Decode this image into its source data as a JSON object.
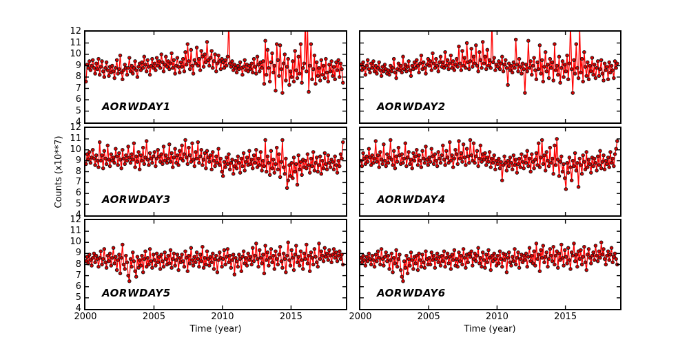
{
  "figure": {
    "background": "#ffffff",
    "axis_color": "#000000",
    "line_color": "#ff0000",
    "marker_fill": "#d40000",
    "marker_edge": "#151515"
  },
  "axes": {
    "x_label": "Time (year)",
    "y_label": "Counts (x10**7)",
    "x_ticks": [
      2000,
      2005,
      2010,
      2015
    ],
    "y_ticks": [
      4,
      5,
      6,
      7,
      8,
      9,
      10,
      11,
      12
    ],
    "x_range": [
      2000,
      2019.0
    ],
    "y_range": [
      4,
      12
    ],
    "grid": false,
    "tick_direction": "in"
  },
  "chart_data": [
    {
      "type": "line",
      "name": "AORWDAY1",
      "x_start": 2000.04,
      "x_step": 0.08333,
      "values": [
        7.6,
        9.1,
        8.8,
        9.4,
        8.6,
        9.0,
        9.5,
        8.8,
        8.3,
        9.2,
        8.7,
        9.6,
        8.2,
        8.9,
        9.4,
        8.5,
        8.0,
        8.8,
        9.3,
        8.6,
        8.1,
        8.9,
        8.4,
        9.0,
        8.5,
        7.9,
        8.8,
        9.5,
        8.3,
        8.7,
        9.9,
        8.4,
        7.8,
        8.6,
        9.1,
        8.8,
        8.2,
        8.8,
        9.7,
        8.5,
        9.0,
        8.3,
        8.8,
        9.4,
        8.6,
        8.0,
        8.9,
        9.2,
        8.6,
        9.3,
        8.8,
        9.8,
        9.1,
        8.5,
        9.5,
        8.9,
        8.2,
        9.0,
        9.6,
        8.8,
        9.2,
        8.6,
        9.7,
        9.0,
        9.4,
        8.8,
        10.0,
        9.3,
        8.5,
        9.1,
        9.8,
        8.9,
        9.4,
        8.7,
        9.2,
        10.1,
        8.8,
        9.5,
        8.3,
        9.0,
        9.7,
        8.9,
        8.4,
        9.3,
        8.9,
        9.6,
        8.5,
        10.2,
        9.1,
        10.9,
        9.4,
        8.7,
        10.4,
        9.0,
        8.3,
        9.5,
        9.2,
        10.6,
        9.0,
        9.6,
        8.6,
        10.3,
        9.8,
        8.9,
        10.0,
        9.3,
        11.1,
        9.5,
        9.0,
        9.7,
        10.3,
        8.8,
        9.4,
        10.0,
        8.5,
        9.2,
        9.9,
        9.4,
        8.7,
        9.6,
        9.3,
        8.8,
        9.5,
        9.0,
        9.8,
        12.8,
        9.2,
        8.9,
        9.4,
        8.6,
        9.1,
        8.8,
        8.4,
        9.0,
        8.7,
        9.3,
        8.8,
        8.2,
        8.9,
        9.5,
        8.6,
        9.1,
        8.5,
        9.0,
        8.7,
        9.2,
        8.4,
        9.6,
        8.9,
        8.3,
        9.8,
        9.1,
        8.5,
        9.3,
        8.8,
        9.4,
        7.4,
        11.2,
        8.2,
        10.4,
        8.8,
        7.6,
        9.3,
        10.1,
        8.4,
        9.0,
        6.8,
        10.9,
        9.5,
        8.1,
        10.8,
        8.7,
        6.6,
        9.2,
        10.0,
        7.7,
        8.9,
        9.6,
        7.3,
        8.5,
        8.0,
        9.4,
        7.6,
        10.3,
        8.6,
        7.9,
        9.8,
        8.3,
        10.9,
        7.5,
        8.8,
        9.2,
        12.9,
        8.5,
        12.4,
        6.7,
        9.0,
        10.9,
        7.8,
        8.7,
        9.9,
        7.4,
        9.3,
        8.1,
        8.8,
        7.7,
        9.5,
        8.2,
        9.0,
        7.9,
        9.6,
        8.4,
        7.6,
        9.1,
        8.5,
        9.4,
        8.1,
        8.9,
        7.8,
        9.3,
        8.6,
        9.5,
        8.0,
        9.2,
        8.7,
        7.5
      ]
    },
    {
      "type": "line",
      "name": "AORWDAY2",
      "x_start": 2000.04,
      "x_step": 0.08333,
      "values": [
        9.1,
        8.6,
        9.3,
        8.8,
        8.2,
        9.0,
        9.5,
        8.7,
        8.4,
        9.2,
        8.8,
        9.4,
        8.5,
        9.0,
        8.3,
        8.8,
        9.3,
        8.6,
        8.1,
        8.9,
        8.5,
        9.1,
        8.7,
        8.3,
        8.6,
        8.2,
        9.0,
        8.5,
        8.8,
        9.6,
        8.4,
        7.9,
        8.7,
        9.2,
        8.6,
        9.0,
        8.4,
        9.8,
        8.7,
        9.1,
        8.5,
        8.9,
        9.4,
        8.6,
        8.1,
        9.0,
        8.7,
        9.3,
        8.8,
        9.5,
        9.0,
        8.4,
        9.2,
        9.9,
        8.7,
        9.3,
        8.8,
        8.3,
        9.1,
        9.6,
        9.0,
        9.4,
        8.6,
        10.1,
        9.2,
        8.8,
        9.6,
        9.0,
        8.5,
        9.3,
        9.8,
        8.9,
        9.3,
        8.8,
        10.2,
        9.0,
        9.5,
        8.7,
        9.2,
        9.9,
        8.8,
        9.4,
        8.6,
        9.1,
        9.6,
        8.9,
        10.7,
        9.2,
        8.6,
        10.3,
        9.0,
        9.7,
        8.8,
        11.0,
        9.3,
        8.7,
        9.4,
        10.5,
        8.9,
        9.8,
        9.2,
        10.8,
        9.0,
        8.5,
        10.2,
        9.5,
        8.8,
        11.1,
        9.2,
        9.8,
        8.7,
        10.4,
        9.0,
        9.5,
        8.8,
        12.7,
        9.3,
        9.7,
        8.6,
        9.1,
        8.9,
        9.4,
        8.7,
        9.2,
        9.8,
        8.5,
        9.1,
        9.5,
        8.8,
        7.3,
        9.2,
        8.6,
        9.0,
        8.4,
        9.3,
        8.8,
        11.3,
        9.1,
        8.5,
        9.6,
        8.9,
        8.3,
        9.2,
        8.7,
        6.6,
        9.1,
        8.5,
        11.2,
        8.8,
        9.4,
        8.2,
        9.0,
        9.7,
        8.6,
        7.8,
        9.3,
        8.7,
        10.8,
        8.3,
        9.5,
        7.6,
        8.9,
        10.2,
        8.5,
        9.1,
        7.9,
        9.6,
        8.8,
        9.3,
        7.7,
        10.9,
        8.6,
        9.0,
        8.2,
        9.8,
        7.5,
        8.8,
        9.4,
        8.0,
        9.1,
        8.5,
        9.9,
        7.8,
        9.2,
        12.8,
        8.7,
        6.6,
        9.5,
        8.3,
        10.9,
        8.8,
        7.9,
        12.5,
        8.4,
        9.6,
        7.6,
        10.2,
        8.9,
        8.1,
        9.3,
        7.8,
        9.0,
        8.5,
        9.7,
        8.2,
        9.1,
        7.9,
        8.8,
        9.4,
        8.1,
        8.7,
        9.5,
        8.3,
        7.7,
        9.2,
        8.6,
        8.9,
        7.8,
        9.3,
        8.4,
        9.0,
        8.6,
        7.9,
        9.4,
        8.8,
        9.2
      ]
    },
    {
      "type": "line",
      "name": "AORWDAY3",
      "x_start": 2000.04,
      "x_step": 0.08333,
      "values": [
        8.7,
        9.6,
        9.1,
        9.8,
        8.8,
        9.3,
        10.0,
        9.2,
        8.6,
        9.5,
        9.0,
        8.4,
        10.7,
        9.0,
        9.5,
        8.3,
        9.9,
        9.2,
        8.7,
        10.4,
        9.1,
        8.5,
        9.6,
        9.0,
        9.3,
        8.8,
        10.1,
        9.4,
        8.6,
        9.7,
        9.1,
        8.3,
        10.0,
        9.2,
        8.7,
        9.5,
        9.0,
        10.3,
        9.3,
        8.8,
        9.6,
        9.1,
        10.6,
        8.4,
        9.4,
        8.9,
        9.8,
        8.2,
        9.5,
        9.0,
        10.2,
        8.7,
        9.3,
        10.8,
        9.1,
        8.6,
        9.7,
        9.2,
        8.8,
        9.4,
        9.8,
        8.5,
        9.2,
        10.0,
        9.4,
        8.9,
        9.6,
        8.7,
        10.3,
        9.0,
        9.5,
        8.8,
        9.2,
        10.5,
        8.9,
        9.7,
        8.4,
        9.3,
        10.1,
        8.8,
        9.5,
        8.6,
        9.9,
        9.2,
        10.4,
        9.0,
        9.6,
        10.9,
        9.3,
        8.7,
        10.2,
        9.5,
        8.9,
        10.6,
        9.1,
        8.5,
        9.8,
        9.2,
        10.7,
        8.8,
        9.4,
        10.0,
        8.6,
        9.1,
        9.7,
        8.3,
        9.9,
        9.3,
        8.9,
        9.5,
        8.2,
        9.8,
        9.0,
        8.5,
        9.4,
        8.8,
        10.1,
        8.6,
        9.2,
        8.0,
        7.6,
        8.9,
        8.4,
        9.3,
        8.7,
        9.6,
        8.2,
        8.8,
        9.1,
        7.8,
        8.5,
        9.0,
        8.3,
        9.4,
        8.8,
        7.9,
        9.2,
        8.5,
        9.7,
        8.1,
        8.9,
        9.3,
        8.6,
        9.9,
        8.7,
        9.1,
        8.3,
        9.5,
        8.8,
        10.0,
        8.4,
        9.2,
        8.6,
        9.8,
        8.1,
        9.0,
        8.5,
        10.9,
        8.0,
        9.4,
        8.8,
        7.7,
        9.9,
        8.3,
        9.1,
        7.9,
        8.7,
        10.2,
        8.2,
        9.6,
        7.5,
        8.9,
        10.9,
        8.4,
        7.8,
        9.2,
        6.5,
        7.2,
        8.6,
        7.6,
        8.8,
        7.4,
        9.3,
        8.0,
        8.7,
        6.8,
        9.5,
        8.2,
        8.9,
        7.7,
        9.1,
        8.4,
        9.0,
        8.3,
        9.6,
        8.6,
        7.9,
        9.2,
        8.5,
        9.8,
        8.1,
        8.8,
        9.3,
        8.0,
        8.6,
        9.4,
        7.8,
        9.0,
        8.3,
        9.7,
        8.7,
        8.2,
        9.5,
        8.8,
        8.4,
        9.1,
        8.9,
        8.2,
        9.4,
        8.6,
        7.9,
        9.0,
        8.5,
        9.6,
        9.2,
        10.7
      ]
    },
    {
      "type": "line",
      "name": "AORWDAY4",
      "x_start": 2000.04,
      "x_step": 0.08333,
      "values": [
        9.0,
        8.5,
        9.7,
        9.2,
        8.7,
        9.4,
        8.9,
        10.1,
        9.3,
        8.6,
        9.5,
        8.8,
        9.2,
        10.8,
        8.9,
        9.5,
        8.4,
        9.8,
        9.1,
        8.7,
        10.5,
        9.0,
        8.5,
        9.6,
        8.8,
        9.3,
        10.9,
        9.1,
        8.6,
        9.9,
        8.3,
        9.4,
        8.9,
        10.2,
        9.5,
        8.7,
        9.6,
        8.8,
        9.2,
        10.6,
        8.5,
        9.3,
        9.8,
        8.7,
        9.1,
        8.3,
        9.7,
        9.0,
        9.4,
        10.0,
        8.6,
        9.5,
        9.0,
        8.4,
        9.9,
        9.2,
        8.8,
        10.3,
        9.1,
        8.6,
        9.3,
        8.9,
        10.1,
        9.4,
        8.7,
        9.6,
        9.0,
        8.5,
        9.8,
        9.2,
        8.8,
        9.5,
        10.4,
        9.1,
        8.6,
        9.9,
        9.3,
        8.8,
        10.7,
        9.0,
        9.5,
        8.4,
        9.2,
        10.0,
        9.6,
        8.7,
        10.8,
        9.2,
        9.7,
        8.9,
        10.5,
        9.3,
        8.6,
        10.1,
        9.4,
        8.8,
        10.9,
        9.5,
        9.0,
        10.6,
        8.8,
        9.4,
        9.9,
        8.5,
        9.2,
        10.4,
        8.9,
        9.6,
        9.1,
        9.7,
        8.6,
        9.3,
        8.9,
        9.8,
        8.4,
        9.2,
        8.8,
        9.5,
        8.2,
        9.0,
        8.7,
        9.2,
        8.3,
        8.9,
        7.2,
        8.6,
        9.4,
        8.8,
        8.1,
        9.0,
        8.5,
        9.3,
        8.8,
        8.2,
        9.5,
        8.6,
        9.1,
        7.9,
        8.7,
        9.2,
        8.4,
        9.6,
        8.9,
        8.3,
        9.4,
        8.8,
        9.9,
        8.5,
        9.2,
        8.0,
        9.6,
        8.9,
        8.3,
        9.1,
        9.7,
        8.6,
        10.6,
        8.4,
        9.3,
        10.9,
        8.7,
        9.5,
        8.1,
        9.8,
        9.0,
        8.5,
        10.2,
        8.8,
        9.2,
        7.8,
        10.4,
        8.6,
        11.0,
        9.1,
        7.6,
        8.9,
        9.4,
        8.0,
        8.7,
        7.4,
        6.4,
        8.8,
        7.9,
        9.3,
        8.4,
        7.2,
        9.0,
        8.5,
        9.7,
        8.1,
        8.8,
        6.6,
        9.2,
        8.6,
        7.8,
        9.5,
        8.9,
        8.2,
        9.8,
        8.4,
        9.1,
        8.7,
        7.9,
        9.3,
        8.5,
        9.2,
        8.8,
        8.1,
        9.4,
        8.6,
        9.9,
        8.3,
        8.9,
        9.5,
        8.2,
        9.0,
        8.7,
        9.3,
        8.4,
        9.8,
        8.8,
        9.2,
        8.5,
        9.6,
        10.1,
        10.8
      ]
    },
    {
      "type": "line",
      "name": "AORWDAY5",
      "x_start": 2000.04,
      "x_step": 0.08333,
      "values": [
        8.3,
        8.7,
        8.1,
        8.9,
        8.4,
        7.9,
        8.6,
        9.0,
        8.2,
        8.8,
        8.5,
        7.8,
        8.6,
        9.2,
        8.0,
        8.5,
        9.4,
        8.2,
        7.7,
        8.8,
        8.3,
        9.0,
        7.9,
        8.6,
        9.5,
        8.1,
        8.7,
        7.5,
        8.4,
        8.9,
        7.2,
        8.6,
        9.8,
        8.0,
        7.6,
        8.8,
        8.2,
        7.0,
        6.5,
        8.5,
        7.8,
        9.1,
        8.3,
        7.4,
        6.9,
        8.7,
        7.7,
        8.4,
        7.9,
        8.8,
        7.3,
        8.5,
        9.2,
        7.8,
        8.6,
        8.0,
        9.4,
        8.3,
        7.7,
        8.9,
        8.4,
        7.9,
        9.0,
        8.2,
        8.7,
        7.6,
        8.9,
        8.3,
        7.8,
        9.1,
        8.5,
        8.0,
        8.8,
        8.1,
        9.3,
        7.7,
        8.5,
        9.0,
        7.9,
        8.4,
        8.9,
        7.5,
        8.6,
        8.2,
        8.9,
        8.3,
        7.8,
        9.2,
        8.6,
        7.4,
        8.8,
        8.1,
        9.5,
        8.4,
        7.9,
        8.7,
        8.2,
        9.1,
        8.5,
        7.8,
        8.9,
        8.3,
        9.6,
        7.7,
        8.6,
        8.0,
        9.2,
        8.5,
        7.9,
        8.7,
        8.2,
        9.0,
        7.6,
        8.5,
        8.8,
        7.3,
        8.4,
        9.1,
        8.6,
        7.8,
        8.5,
        9.3,
        8.0,
        8.7,
        9.4,
        8.2,
        8.8,
        7.7,
        8.4,
        8.9,
        7.1,
        8.6,
        8.3,
        7.8,
        8.9,
        8.5,
        7.4,
        8.7,
        9.2,
        8.1,
        8.6,
        7.9,
        9.0,
        8.4,
        8.7,
        8.0,
        9.5,
        8.3,
        8.8,
        9.9,
        8.5,
        7.8,
        9.3,
        8.6,
        8.1,
        8.9,
        7.2,
        9.7,
        8.4,
        9.1,
        7.9,
        8.6,
        9.4,
        8.2,
        8.8,
        7.6,
        9.2,
        8.5,
        8.0,
        8.9,
        9.6,
        8.3,
        7.7,
        9.0,
        8.5,
        7.3,
        8.8,
        10.0,
        8.4,
        7.9,
        9.3,
        8.6,
        7.5,
        8.9,
        9.7,
        8.2,
        8.7,
        7.9,
        9.2,
        8.4,
        7.6,
        9.0,
        8.5,
        9.8,
        8.1,
        8.8,
        7.4,
        9.1,
        8.6,
        8.0,
        9.4,
        8.7,
        8.2,
        7.8,
        9.9,
        8.5,
        9.2,
        8.8,
        8.3,
        9.5,
        8.7,
        9.0,
        8.4,
        9.3,
        8.8,
        8.2,
        8.9,
        9.4,
        8.6,
        9.1,
        8.3,
        8.8,
        9.2,
        8.5,
        8.9,
        8.0
      ]
    },
    {
      "type": "line",
      "name": "AORWDAY6",
      "x_start": 2000.04,
      "x_step": 0.08333,
      "values": [
        8.6,
        8.2,
        8.8,
        8.4,
        7.9,
        8.7,
        8.3,
        9.0,
        8.5,
        8.0,
        8.8,
        8.4,
        7.8,
        8.9,
        8.3,
        9.2,
        8.6,
        8.0,
        9.4,
        8.5,
        7.9,
        8.7,
        9.1,
        8.3,
        8.8,
        7.6,
        8.4,
        9.0,
        7.3,
        8.6,
        8.1,
        9.3,
        7.8,
        8.5,
        8.9,
        7.5,
        6.9,
        6.5,
        8.3,
        7.7,
        8.8,
        7.2,
        8.5,
        7.9,
        9.1,
        8.4,
        7.6,
        8.7,
        8.1,
        8.8,
        7.5,
        9.0,
        8.4,
        7.8,
        8.9,
        8.2,
        7.7,
        9.2,
        8.5,
        8.0,
        8.6,
        8.0,
        9.1,
        8.4,
        8.8,
        7.7,
        8.5,
        9.0,
        8.2,
        8.7,
        7.9,
        8.8,
        8.3,
        9.2,
        7.8,
        8.6,
        9.0,
        8.1,
        8.7,
        7.6,
        8.9,
        8.4,
        9.3,
        7.9,
        8.5,
        7.8,
        9.1,
        8.3,
        8.8,
        8.0,
        9.4,
        8.6,
        7.7,
        8.9,
        8.2,
        9.0,
        8.7,
        9.2,
        7.9,
        8.5,
        9.0,
        8.3,
        8.8,
        9.5,
        8.1,
        8.6,
        7.8,
        9.1,
        8.4,
        7.7,
        8.9,
        8.2,
        9.3,
        8.6,
        7.5,
        8.8,
        8.3,
        9.0,
        8.5,
        7.9,
        8.8,
        8.1,
        9.2,
        8.5,
        7.8,
        9.0,
        8.4,
        8.9,
        7.3,
        8.6,
        9.1,
        8.2,
        7.9,
        8.7,
        8.3,
        9.4,
        8.0,
        8.6,
        9.1,
        7.7,
        8.5,
        8.9,
        8.2,
        8.8,
        8.4,
        9.0,
        7.8,
        8.7,
        9.5,
        8.3,
        8.8,
        8.1,
        9.2,
        7.9,
        9.9,
        8.5,
        8.9,
        7.4,
        9.3,
        8.6,
        9.7,
        8.2,
        8.7,
        9.1,
        7.8,
        8.5,
        9.4,
        8.8,
        8.3,
        9.6,
        8.0,
        8.8,
        9.2,
        7.7,
        9.0,
        8.4,
        9.8,
        8.6,
        7.9,
        9.3,
        8.7,
        8.1,
        9.5,
        8.4,
        7.6,
        9.1,
        8.8,
        9.9,
        8.3,
        8.9,
        7.8,
        9.2,
        8.5,
        9.3,
        8.0,
        8.7,
        9.6,
        8.2,
        7.5,
        8.9,
        9.4,
        8.6,
        8.1,
        8.8,
        9.1,
        8.4,
        9.7,
        8.8,
        8.3,
        9.2,
        8.6,
        10.0,
        8.9,
        9.4,
        8.5,
        8.0,
        8.8,
        9.2,
        8.4,
        8.9,
        9.5,
        8.2,
        8.7,
        9.0,
        8.5,
        8.0
      ]
    }
  ]
}
